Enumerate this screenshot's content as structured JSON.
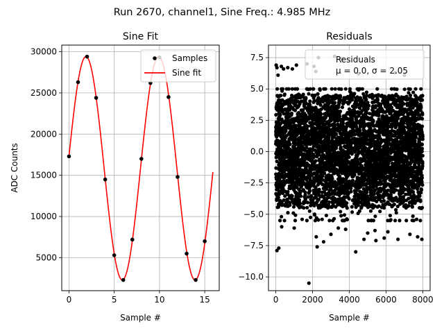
{
  "figure_title": "Run 2670, channel1, Sine Freq.: 4.985 MHz",
  "colors": {
    "fit": "#ff0000",
    "points": "#000000",
    "grid": "#b0b0b0",
    "legend_edge": "#cccccc"
  },
  "chart_data": [
    {
      "type": "scatter",
      "title": "Sine Fit",
      "xlabel": "Sample #",
      "ylabel": "ADC Counts",
      "xlim": [
        -0.8,
        16.6
      ],
      "ylim": [
        1000,
        30800
      ],
      "xticks": [
        0,
        5,
        10,
        15
      ],
      "yticks": [
        5000,
        10000,
        15000,
        20000,
        25000,
        30000
      ],
      "grid": true,
      "legend_position": "top-right",
      "legend": [
        "Samples",
        "Sine fit"
      ],
      "samples": {
        "name": "Samples",
        "x": [
          0,
          1,
          2,
          3,
          4,
          5,
          6,
          7,
          8,
          9,
          10,
          11,
          12,
          13,
          14,
          15
        ],
        "y": [
          17300,
          26300,
          29400,
          24400,
          14500,
          5300,
          2300,
          7200,
          17000,
          26200,
          29300,
          24500,
          14800,
          5500,
          2300,
          7000
        ]
      },
      "fit": {
        "name": "Sine fit",
        "model": "offset + amplitude * sin(2*pi*x/period + phase)",
        "offset": 15850,
        "amplitude": 13550,
        "period": 8.04,
        "phase": 0.107,
        "x_range": [
          0,
          15.9
        ]
      }
    },
    {
      "type": "scatter",
      "title": "Residuals",
      "xlabel": "Sample #",
      "ylabel": "",
      "xlim": [
        -400,
        8400
      ],
      "ylim": [
        -11.1,
        8.5
      ],
      "xticks": [
        0,
        2000,
        4000,
        6000,
        8000
      ],
      "yticks": [
        -10.0,
        -7.5,
        -5.0,
        -2.5,
        0.0,
        2.5,
        5.0,
        7.5
      ],
      "grid": true,
      "legend_position": "top-right",
      "legend": [
        "Residuals",
        "μ = 0.0, σ = 2.05"
      ],
      "series": {
        "name": "Residuals",
        "n_points": 8000,
        "x_range": [
          0,
          8000
        ],
        "mean": 0.0,
        "std": 2.05,
        "bulk_range": [
          -4.5,
          4.5
        ]
      },
      "outliers": {
        "x": [
          20,
          60,
          120,
          300,
          420,
          650,
          900,
          1120,
          1700,
          2080,
          2180,
          2320,
          3200,
          3600,
          60,
          160,
          320,
          1800,
          2200,
          2250,
          2600,
          3000,
          4350,
          4800,
          5450,
          5900,
          6650,
          7300,
          7950,
          7720,
          6100,
          3400,
          3800,
          5000,
          6500,
          7000,
          1000,
          4500,
          5400
        ],
        "y": [
          6.9,
          6.7,
          6.1,
          6.8,
          6.6,
          6.7,
          6.6,
          6.9,
          7.0,
          6.8,
          6.4,
          7.5,
          7.6,
          7.4,
          -7.9,
          -7.7,
          -6.0,
          -10.5,
          -6.8,
          -7.6,
          -7.2,
          -6.6,
          -8.0,
          -7.0,
          -7.1,
          -6.9,
          -7.0,
          -6.6,
          -7.0,
          -6.8,
          -6.4,
          -6.1,
          -6.2,
          -6.5,
          6.3,
          6.1,
          -6.1,
          6.2,
          -6.3
        ]
      }
    }
  ]
}
